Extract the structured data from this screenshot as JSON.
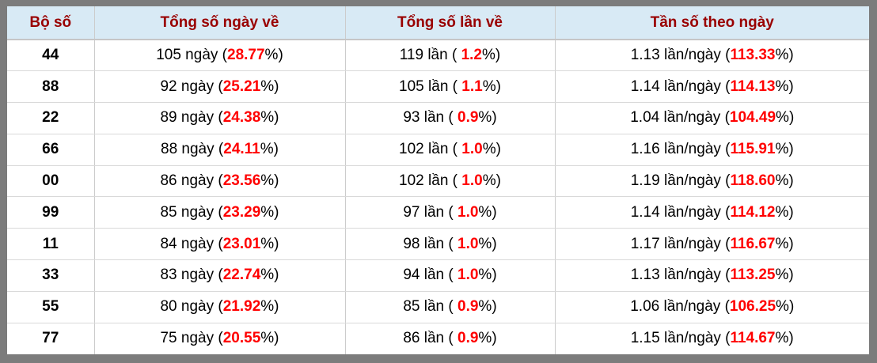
{
  "colors": {
    "frame_border": "#7c7c7c",
    "header_background": "#d8eaf5",
    "header_text": "#990000",
    "percent_highlight": "#ff0000",
    "body_text": "#000000",
    "column_divider": "#cccccc",
    "row_divider": "#d9d9d9"
  },
  "table": {
    "headers": [
      "Bộ số",
      "Tổng số ngày về",
      "Tổng số lần về",
      "Tần số theo ngày"
    ],
    "rows": [
      {
        "pair": "44",
        "days_prefix": "105 ngày (",
        "days_pct": "28.77",
        "days_suffix": "%)",
        "times_prefix": "119 lần ( ",
        "times_pct": "1.2",
        "times_suffix": "%)",
        "freq_prefix": "1.13 lần/ngày (",
        "freq_pct": "113.33",
        "freq_suffix": "%)"
      },
      {
        "pair": "88",
        "days_prefix": "92 ngày (",
        "days_pct": "25.21",
        "days_suffix": "%)",
        "times_prefix": "105 lần ( ",
        "times_pct": "1.1",
        "times_suffix": "%)",
        "freq_prefix": "1.14 lần/ngày (",
        "freq_pct": "114.13",
        "freq_suffix": "%)"
      },
      {
        "pair": "22",
        "days_prefix": "89 ngày (",
        "days_pct": "24.38",
        "days_suffix": "%)",
        "times_prefix": "93 lần ( ",
        "times_pct": "0.9",
        "times_suffix": "%)",
        "freq_prefix": "1.04 lần/ngày (",
        "freq_pct": "104.49",
        "freq_suffix": "%)"
      },
      {
        "pair": "66",
        "days_prefix": "88 ngày (",
        "days_pct": "24.11",
        "days_suffix": "%)",
        "times_prefix": "102 lần ( ",
        "times_pct": "1.0",
        "times_suffix": "%)",
        "freq_prefix": "1.16 lần/ngày (",
        "freq_pct": "115.91",
        "freq_suffix": "%)"
      },
      {
        "pair": "00",
        "days_prefix": "86 ngày (",
        "days_pct": "23.56",
        "days_suffix": "%)",
        "times_prefix": "102 lần ( ",
        "times_pct": "1.0",
        "times_suffix": "%)",
        "freq_prefix": "1.19 lần/ngày (",
        "freq_pct": "118.60",
        "freq_suffix": "%)"
      },
      {
        "pair": "99",
        "days_prefix": "85 ngày (",
        "days_pct": "23.29",
        "days_suffix": "%)",
        "times_prefix": "97 lần ( ",
        "times_pct": "1.0",
        "times_suffix": "%)",
        "freq_prefix": "1.14 lần/ngày (",
        "freq_pct": "114.12",
        "freq_suffix": "%)"
      },
      {
        "pair": "11",
        "days_prefix": "84 ngày (",
        "days_pct": "23.01",
        "days_suffix": "%)",
        "times_prefix": "98 lần ( ",
        "times_pct": "1.0",
        "times_suffix": "%)",
        "freq_prefix": "1.17 lần/ngày (",
        "freq_pct": "116.67",
        "freq_suffix": "%)"
      },
      {
        "pair": "33",
        "days_prefix": "83 ngày (",
        "days_pct": "22.74",
        "days_suffix": "%)",
        "times_prefix": "94 lần ( ",
        "times_pct": "1.0",
        "times_suffix": "%)",
        "freq_prefix": "1.13 lần/ngày (",
        "freq_pct": "113.25",
        "freq_suffix": "%)"
      },
      {
        "pair": "55",
        "days_prefix": "80 ngày (",
        "days_pct": "21.92",
        "days_suffix": "%)",
        "times_prefix": "85 lần ( ",
        "times_pct": "0.9",
        "times_suffix": "%)",
        "freq_prefix": "1.06 lần/ngày (",
        "freq_pct": "106.25",
        "freq_suffix": "%)"
      },
      {
        "pair": "77",
        "days_prefix": "75 ngày (",
        "days_pct": "20.55",
        "days_suffix": "%)",
        "times_prefix": "86 lần ( ",
        "times_pct": "0.9",
        "times_suffix": "%)",
        "freq_prefix": "1.15 lần/ngày (",
        "freq_pct": "114.67",
        "freq_suffix": "%)"
      }
    ]
  }
}
